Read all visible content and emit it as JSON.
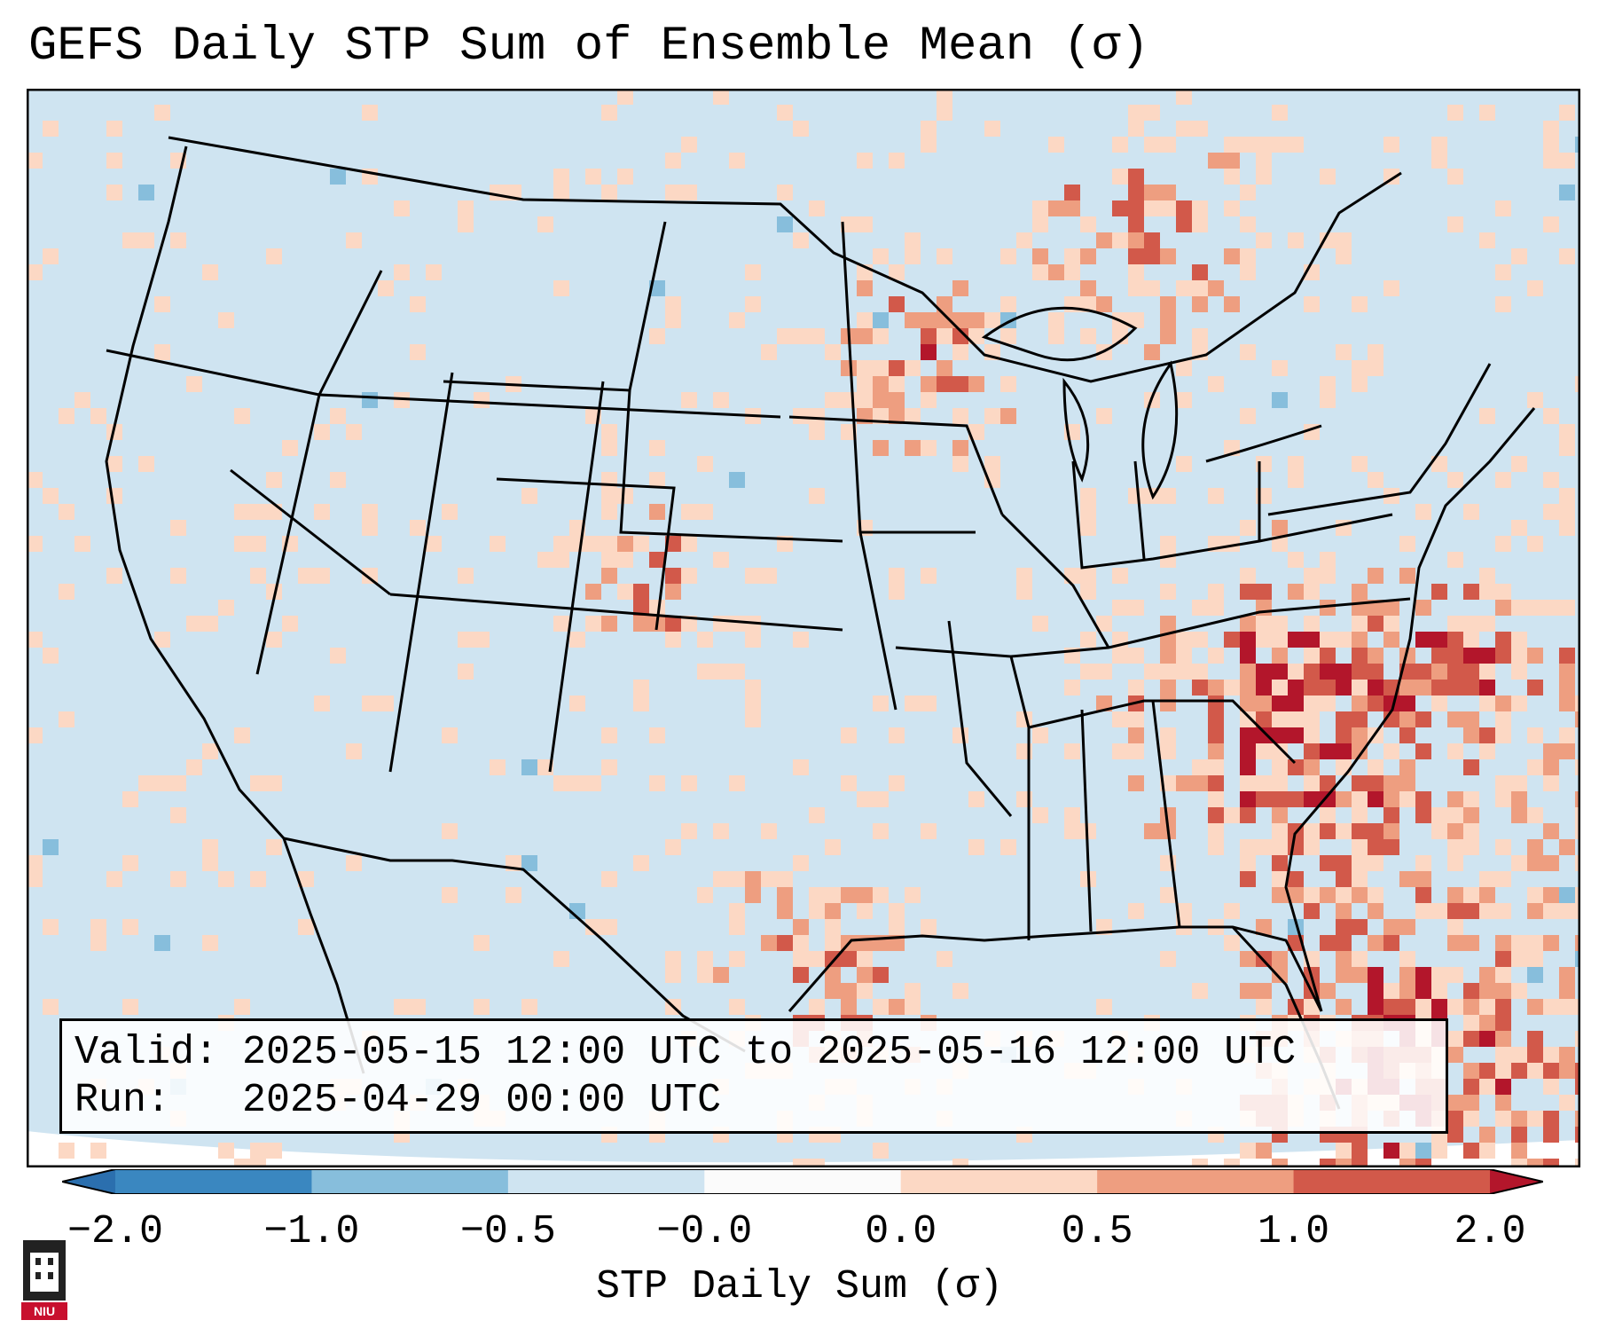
{
  "title": "GEFS Daily STP Sum of Ensemble Mean (σ)",
  "info": {
    "valid_line": "Valid: 2025-05-15 12:00 UTC to 2025-05-16 12:00 UTC",
    "run_line": "Run:   2025-04-29 00:00 UTC"
  },
  "colorbar": {
    "label": "STP Daily Sum (σ)",
    "ticks": [
      "−2.0",
      "−1.0",
      "−0.5",
      "−0.0",
      "0.0",
      "0.5",
      "1.0",
      "2.0"
    ],
    "colors": [
      "#3a87c0",
      "#87bedc",
      "#cfe4f1",
      "#fbfbfb",
      "#fcd8c4",
      "#ee9e80",
      "#d2594a"
    ],
    "extend_low_color": "#2b6fae",
    "extend_high_color": "#b3162b"
  },
  "logo": {
    "text": "NIU",
    "color": "#c8102e"
  },
  "colors": {
    "background_bin": "#cfe4f1",
    "land_edge": "#000000"
  }
}
